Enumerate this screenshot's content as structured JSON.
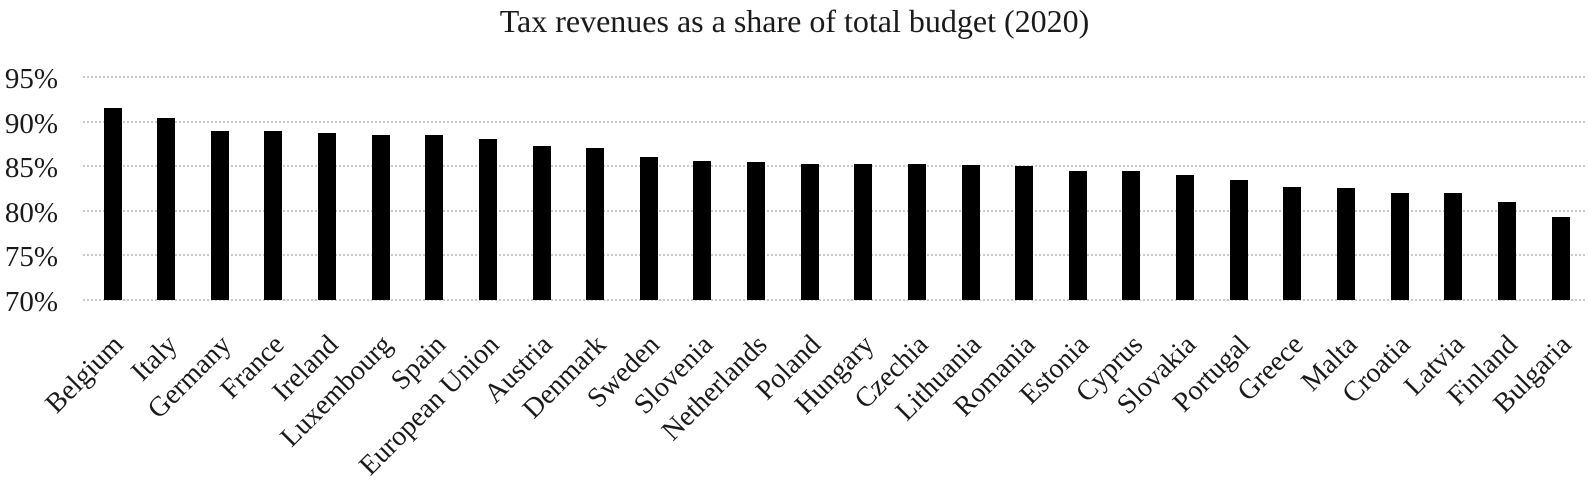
{
  "page": {
    "background": "#ffffff"
  },
  "chart_data": {
    "type": "bar",
    "title": "Tax revenues as a share of total budget (2020)",
    "xlabel": "",
    "ylabel": "",
    "ylim": [
      70,
      95
    ],
    "grid": "horizontal-dotted",
    "legend": "none",
    "bar_color": "#000000",
    "gridline_color": "#c9c9c9",
    "text_color": "#1a1a1a",
    "y_ticks": [
      {
        "value": 95,
        "label": "95%"
      },
      {
        "value": 90,
        "label": "90%"
      },
      {
        "value": 85,
        "label": "85%"
      },
      {
        "value": 80,
        "label": "80%"
      },
      {
        "value": 75,
        "label": "75%"
      },
      {
        "value": 70,
        "label": "70%"
      }
    ],
    "categories": [
      "Belgium",
      "Italy",
      "Germany",
      "France",
      "Ireland",
      "Luxembourg",
      "Spain",
      "European Union",
      "Austria",
      "Denmark",
      "Sweden",
      "Slovenia",
      "Netherlands",
      "Poland",
      "Hungary",
      "Czechia",
      "Lithuania",
      "Romania",
      "Estonia",
      "Cyprus",
      "Slovakia",
      "Portugal",
      "Greece",
      "Malta",
      "Croatia",
      "Latvia",
      "Finland",
      "Bulgaria"
    ],
    "values": [
      91.5,
      90.4,
      89.0,
      88.9,
      88.7,
      88.5,
      88.5,
      88.0,
      87.3,
      87.0,
      86.0,
      85.6,
      85.5,
      85.3,
      85.3,
      85.2,
      85.1,
      85.0,
      84.5,
      84.5,
      84.0,
      83.5,
      82.7,
      82.6,
      82.0,
      82.0,
      81.0,
      79.3
    ]
  }
}
